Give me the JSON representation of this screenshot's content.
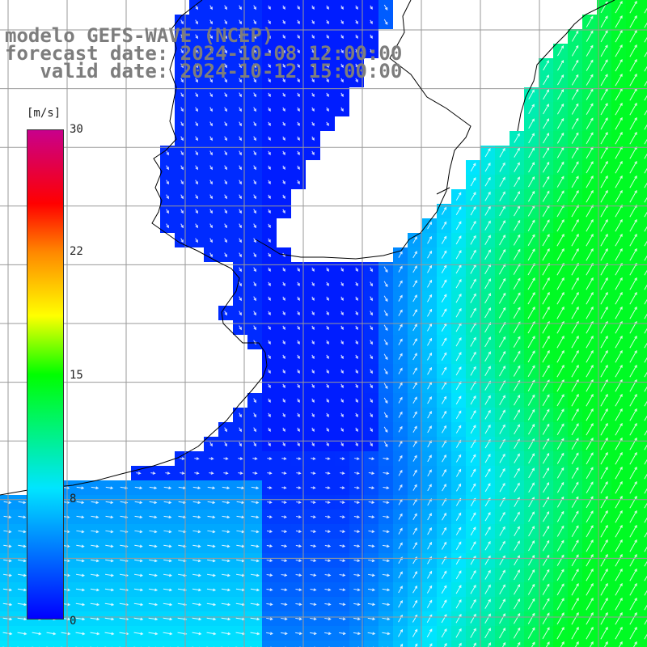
{
  "title": {
    "line1": "modelo GEFS-WAVE (NCEP)",
    "line2": "forecast date: 2024-10-08 12:00:00",
    "line3": "   valid date: 2024-10-12 15:00:00"
  },
  "colorbar": {
    "unit": "[m/s]",
    "ticks": [
      "30",
      "22",
      "15",
      "8",
      "0"
    ],
    "range": [
      0,
      30
    ],
    "stops": [
      {
        "value": 0,
        "color": "#0000ff"
      },
      {
        "value": 8,
        "color": "#00e5ff"
      },
      {
        "value": 15,
        "color": "#00ff00"
      },
      {
        "value": 18.6,
        "color": "#ffff00"
      },
      {
        "value": 22.5,
        "color": "#ff8800"
      },
      {
        "value": 25.5,
        "color": "#ff0000"
      },
      {
        "value": 30,
        "color": "#c8008c"
      }
    ]
  },
  "map": {
    "land_color": "#ffffff",
    "coastline_color": "#000000",
    "grid_color": "#9a9a9a"
  }
}
